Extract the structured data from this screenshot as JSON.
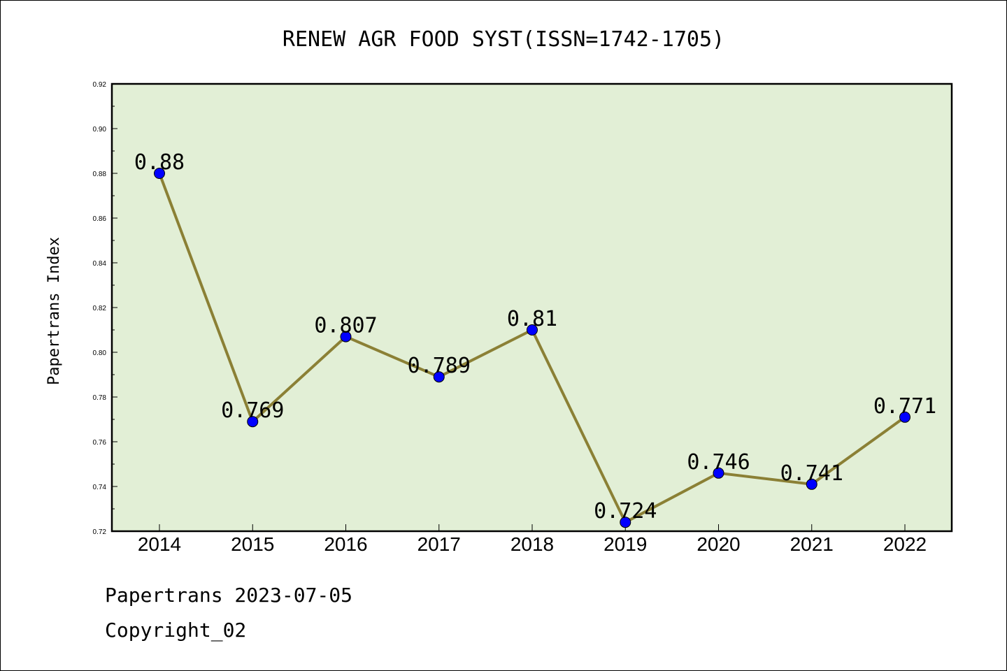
{
  "chart_data": {
    "type": "line",
    "title": "RENEW AGR FOOD SYST(ISSN=1742-1705)",
    "xlabel": "",
    "ylabel": "Papertrans Index",
    "categories": [
      "2014",
      "2015",
      "2016",
      "2017",
      "2018",
      "2019",
      "2020",
      "2021",
      "2022"
    ],
    "values": [
      0.88,
      0.769,
      0.807,
      0.789,
      0.81,
      0.724,
      0.746,
      0.741,
      0.771
    ],
    "data_labels": [
      "0.88",
      "0.769",
      "0.807",
      "0.789",
      "0.81",
      "0.724",
      "0.746",
      "0.741",
      "0.771"
    ],
    "yticks": [
      "0.72",
      "0.74",
      "0.76",
      "0.78",
      "0.80",
      "0.82",
      "0.84",
      "0.86",
      "0.88",
      "0.90",
      "0.92"
    ],
    "ylim": [
      0.72,
      0.92
    ],
    "grid": false,
    "colors": {
      "plot_background": "#e2efd6",
      "line": "#8b8035",
      "marker": "#0000ff"
    }
  },
  "footer": {
    "date_text": "Papertrans 2023-07-05",
    "copyright_text": "Copyright_02"
  }
}
